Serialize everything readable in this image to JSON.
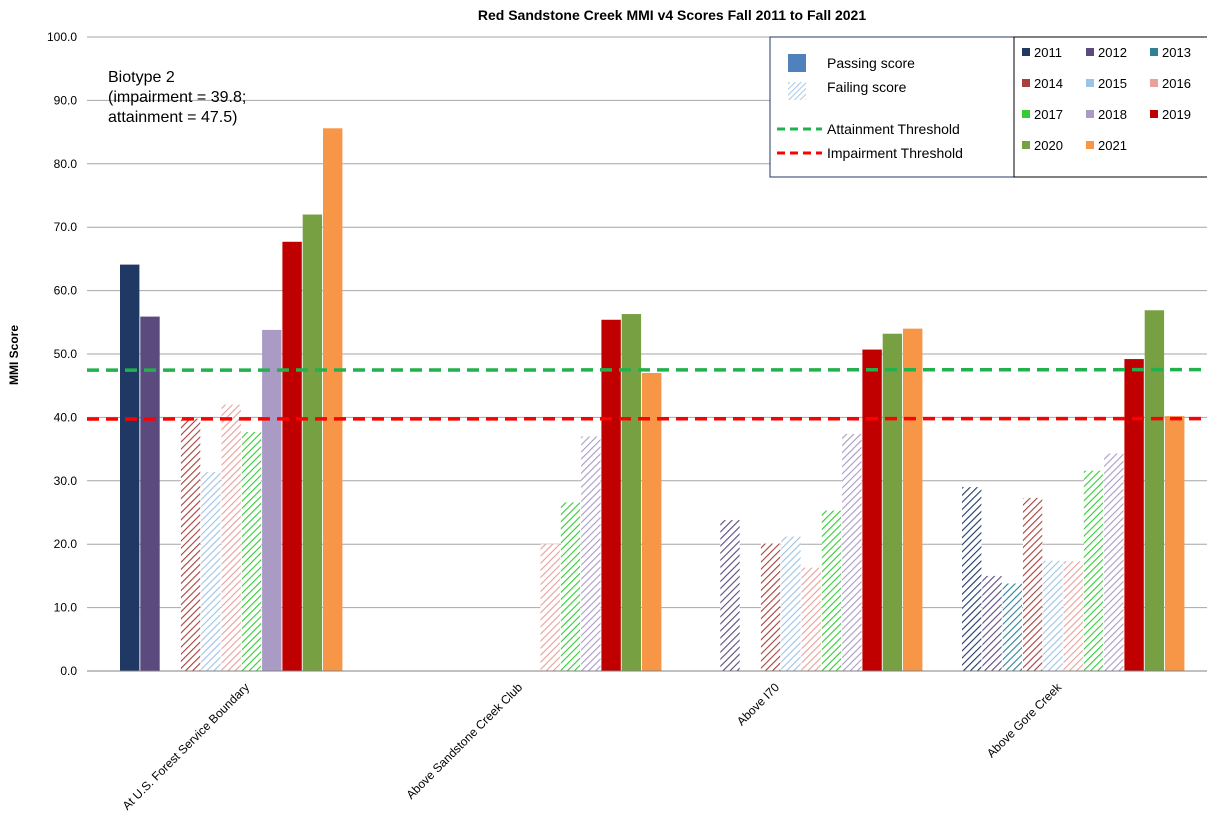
{
  "chart_data": {
    "type": "bar",
    "title": "Red Sandstone Creek MMI v4 Scores Fall 2011 to Fall 2021",
    "ylabel": "MMI Score",
    "xlabel": "",
    "ylim": [
      0,
      100
    ],
    "yticks": [
      "0.0",
      "10.0",
      "20.0",
      "30.0",
      "40.0",
      "50.0",
      "60.0",
      "70.0",
      "80.0",
      "90.0",
      "100.0"
    ],
    "grid": true,
    "categories": [
      "At U.S. Forest Service Boundary",
      "Above Sandstone Creek Club",
      "Above I70",
      "Above Gore Creek"
    ],
    "series": [
      {
        "name": "2011",
        "color": "#1f3864",
        "values": [
          64.1,
          null,
          null,
          29.0
        ]
      },
      {
        "name": "2012",
        "color": "#5b4a7e",
        "values": [
          55.9,
          null,
          23.8,
          15.0
        ]
      },
      {
        "name": "2013",
        "color": "#2e8196",
        "values": [
          null,
          null,
          null,
          13.8
        ]
      },
      {
        "name": "2014",
        "color": "#a5403c",
        "values": [
          39.8,
          null,
          20.1,
          27.3
        ]
      },
      {
        "name": "2015",
        "color": "#9dc3e6",
        "values": [
          31.4,
          null,
          21.2,
          17.4
        ]
      },
      {
        "name": "2016",
        "color": "#e8a09a",
        "values": [
          42.0,
          20.0,
          16.3,
          17.3
        ]
      },
      {
        "name": "2017",
        "color": "#33cc33",
        "values": [
          37.7,
          26.6,
          25.3,
          31.6
        ]
      },
      {
        "name": "2018",
        "color": "#a99bc4",
        "values": [
          53.8,
          37.0,
          37.4,
          34.3
        ]
      },
      {
        "name": "2019",
        "color": "#c00000",
        "values": [
          67.7,
          55.4,
          50.7,
          49.2
        ]
      },
      {
        "name": "2020",
        "color": "#77a043",
        "values": [
          72.0,
          56.3,
          53.2,
          56.9
        ]
      },
      {
        "name": "2021",
        "color": "#f79646",
        "values": [
          85.6,
          47.0,
          54.0,
          40.2
        ]
      }
    ],
    "thresholds": [
      {
        "name": "Attainment Threshold",
        "value": 47.5,
        "color": "#22b14c"
      },
      {
        "name": "Impairment Threshold",
        "value": 39.8,
        "color": "#ff0000"
      }
    ],
    "attainment_threshold": 47.5,
    "impairment_threshold": 39.8,
    "legend_position": "top-right",
    "annotation": [
      "Biotype 2",
      "(impairment = 39.8;",
      "attainment = 47.5)"
    ],
    "fill_legend": [
      {
        "label": "Passing score",
        "style": "solid",
        "color": "#4f81bd"
      },
      {
        "label": "Failing score",
        "style": "hatched",
        "color": "#9dc3e6"
      }
    ]
  }
}
